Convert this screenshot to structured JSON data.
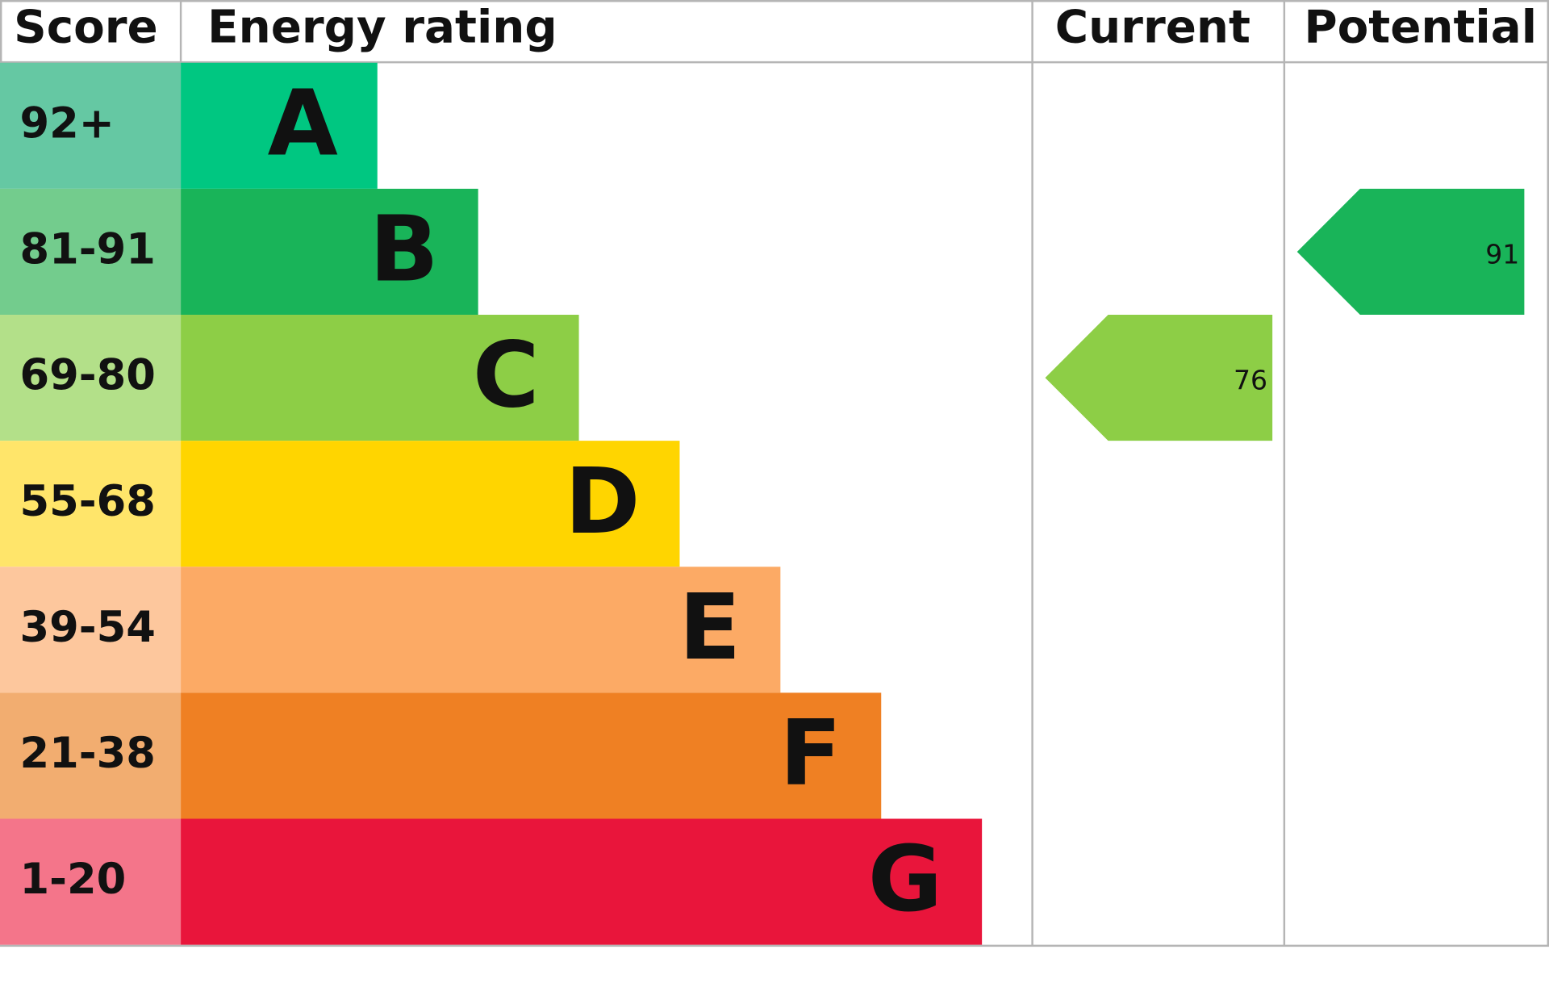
{
  "chart_data": {
    "type": "energy-rating",
    "headers": {
      "score": "Score",
      "rating": "Energy rating",
      "current": "Current",
      "potential": "Potential"
    },
    "bands": [
      {
        "score": "92+",
        "rating": "A",
        "score_color": "#65c8a3",
        "color": "#00c781"
      },
      {
        "score": "81-91",
        "rating": "B",
        "score_color": "#73cc8d",
        "color": "#19b459"
      },
      {
        "score": "69-80",
        "rating": "C",
        "score_color": "#b3e089",
        "color": "#8dce46"
      },
      {
        "score": "55-68",
        "rating": "D",
        "score_color": "#ffe56a",
        "color": "#ffd500"
      },
      {
        "score": "39-54",
        "rating": "E",
        "score_color": "#fdc79d",
        "color": "#fcaa65"
      },
      {
        "score": "21-38",
        "rating": "F",
        "score_color": "#f2ad70",
        "color": "#ef8023"
      },
      {
        "score": "1-20",
        "rating": "G",
        "score_color": "#f4758a",
        "color": "#e9153b"
      }
    ],
    "current": 76,
    "potential": 91
  }
}
